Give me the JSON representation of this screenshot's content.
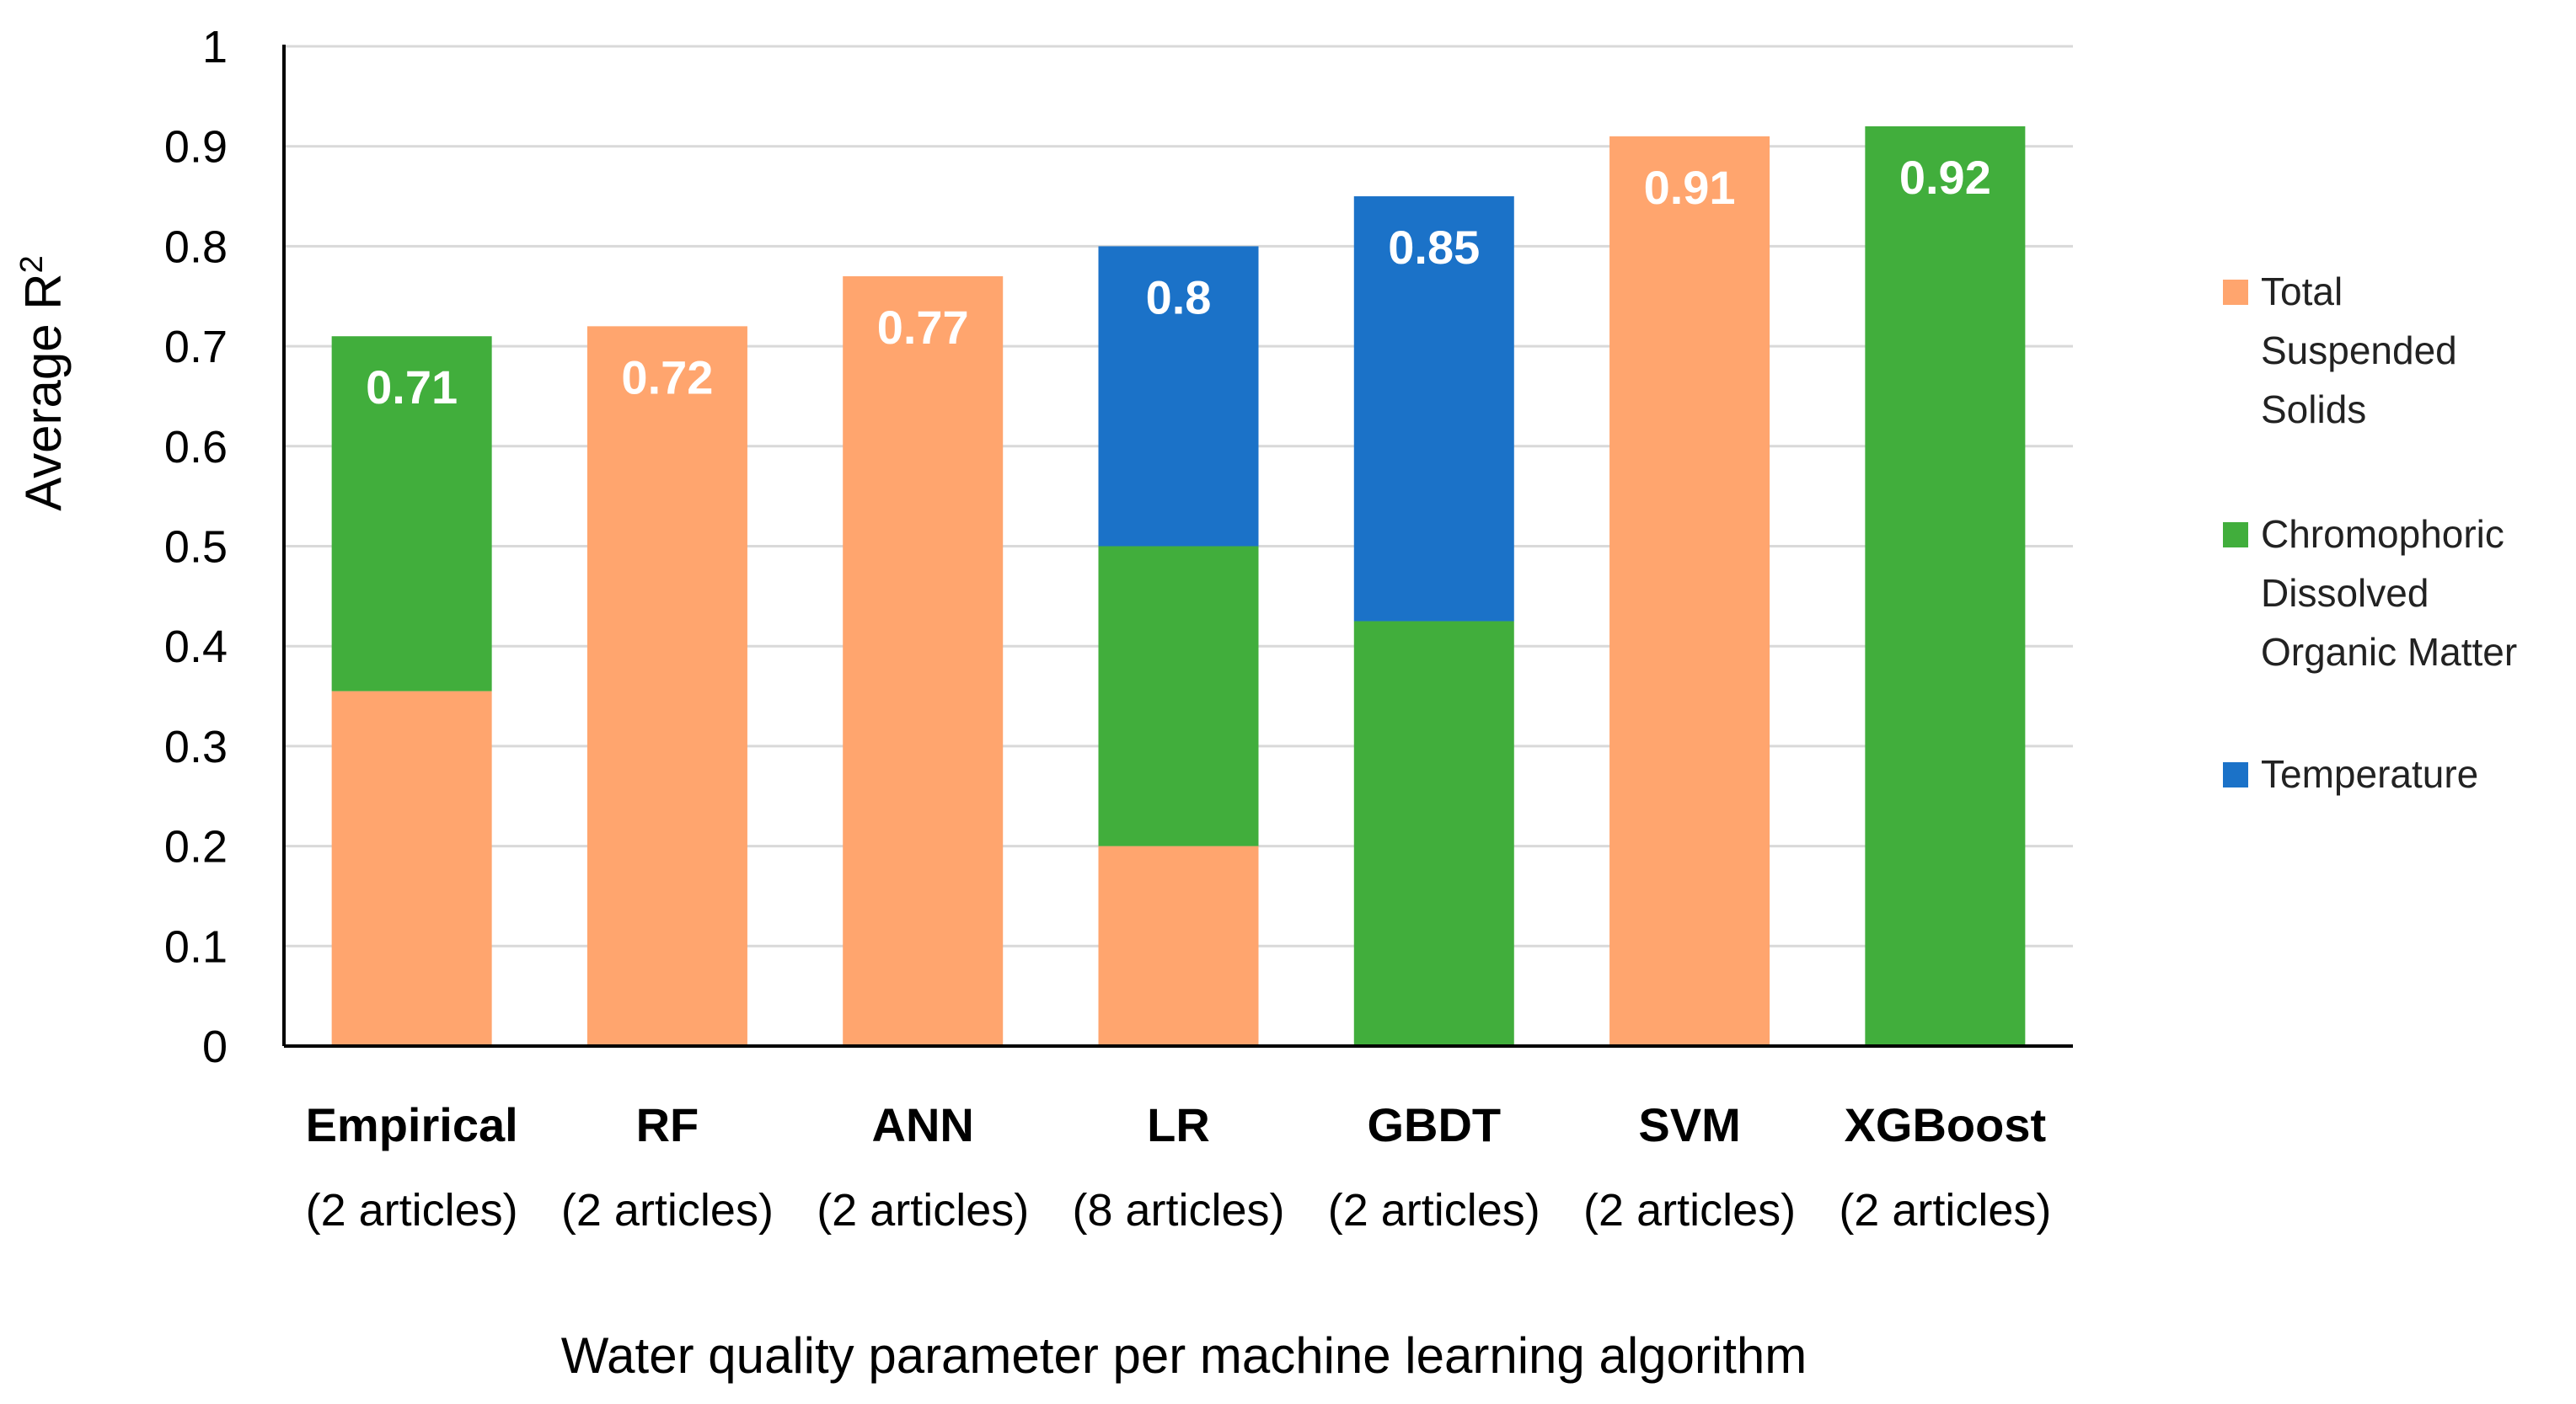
{
  "chart_data": {
    "type": "bar",
    "stacked": true,
    "title": "",
    "xlabel": "Water quality parameter per machine learning algorithm",
    "ylabel": "Average R",
    "ylabel_superscript": "2",
    "ylim": [
      0,
      1
    ],
    "yticks": [
      "0",
      "0.1",
      "0.2",
      "0.3",
      "0.4",
      "0.5",
      "0.6",
      "0.7",
      "0.8",
      "0.9",
      "1"
    ],
    "gridlines": true,
    "legend_position": "right",
    "categories": [
      "Empirical",
      "RF",
      "ANN",
      "LR",
      "GBDT",
      "SVM",
      "XGBoost"
    ],
    "subcategories": [
      "(2 articles)",
      "(2 articles)",
      "(2 articles)",
      "(8 articles)",
      "(2 articles)",
      "(2 articles)",
      "(2 articles)"
    ],
    "series": [
      {
        "name": "Total Suspended Solids",
        "legend_lines": [
          "Total",
          "Suspended",
          "Solids"
        ],
        "color": "#FFA56E",
        "values": [
          0.355,
          0.72,
          0.77,
          0.2,
          0,
          0.91,
          0
        ]
      },
      {
        "name": "Chromophoric Dissolved Organic Matter",
        "legend_lines": [
          "Chromophoric",
          "Dissolved",
          "Organic Matter"
        ],
        "color": "#41AE3C",
        "values": [
          0.355,
          0,
          0,
          0.3,
          0.425,
          0,
          0.92
        ]
      },
      {
        "name": "Temperature",
        "legend_lines": [
          "Temperature"
        ],
        "color": "#1B72C8",
        "values": [
          0,
          0,
          0,
          0.3,
          0.425,
          0,
          0
        ]
      }
    ],
    "totals": [
      0.71,
      0.72,
      0.77,
      0.8,
      0.85,
      0.91,
      0.92
    ],
    "total_labels": [
      "0.71",
      "0.72",
      "0.77",
      "0.8",
      "0.85",
      "0.91",
      "0.92"
    ],
    "gridline_color": "#d9d9d9",
    "axis_color": "#000000"
  }
}
